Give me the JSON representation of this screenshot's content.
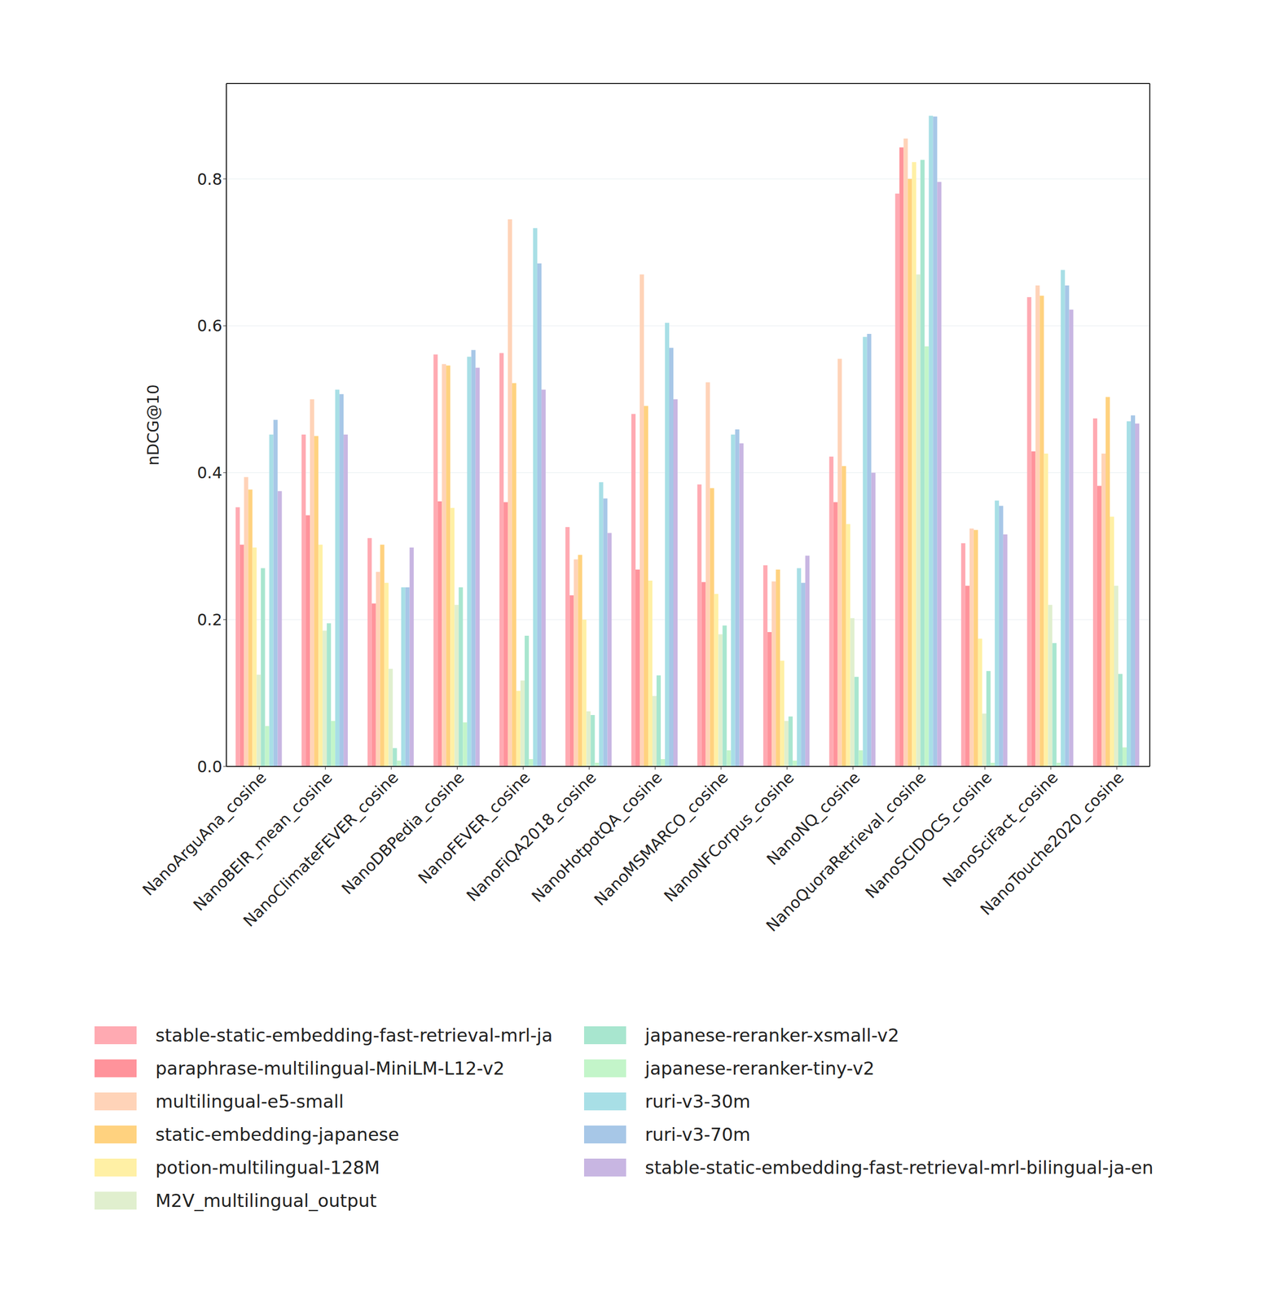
{
  "chart_data": {
    "type": "bar",
    "y_label": "nDCG@10",
    "categories": [
      "NanoArguAna_cosine",
      "NanoBEIR_mean_cosine",
      "NanoClimateFEVER_cosine",
      "NanoDBPedia_cosine",
      "NanoFEVER_cosine",
      "NanoFiQA2018_cosine",
      "NanoHotpotQA_cosine",
      "NanoMSMARCO_cosine",
      "NanoNFCorpus_cosine",
      "NanoNQ_cosine",
      "NanoQuoraRetrieval_cosine",
      "NanoSCIDOCS_cosine",
      "NanoSciFact_cosine",
      "NanoTouche2020_cosine"
    ],
    "series": [
      {
        "name": "stable-static-embedding-fast-retrieval-mrl-ja",
        "color": "#ffaab2",
        "values": [
          0.353,
          0.452,
          0.311,
          0.561,
          0.563,
          0.326,
          0.48,
          0.384,
          0.274,
          0.422,
          0.78,
          0.304,
          0.639,
          0.474
        ]
      },
      {
        "name": "paraphrase-multilingual-MiniLM-L12-v2",
        "color": "#ff939b",
        "values": [
          0.302,
          0.342,
          0.222,
          0.361,
          0.36,
          0.233,
          0.268,
          0.251,
          0.183,
          0.36,
          0.843,
          0.246,
          0.429,
          0.382
        ]
      },
      {
        "name": "multilingual-e5-small",
        "color": "#ffd3b8",
        "values": [
          0.394,
          0.5,
          0.265,
          0.548,
          0.745,
          0.282,
          0.67,
          0.523,
          0.252,
          0.555,
          0.855,
          0.324,
          0.655,
          0.426
        ]
      },
      {
        "name": "static-embedding-japanese",
        "color": "#ffd27f",
        "values": [
          0.377,
          0.45,
          0.302,
          0.546,
          0.522,
          0.288,
          0.491,
          0.379,
          0.268,
          0.409,
          0.8,
          0.322,
          0.641,
          0.503
        ]
      },
      {
        "name": "potion-multilingual-128M",
        "color": "#fff0a5",
        "values": [
          0.298,
          0.302,
          0.25,
          0.352,
          0.103,
          0.2,
          0.253,
          0.235,
          0.144,
          0.33,
          0.823,
          0.174,
          0.426,
          0.34
        ]
      },
      {
        "name": "M2V_multilingual_output",
        "color": "#e0efce",
        "values": [
          0.125,
          0.185,
          0.133,
          0.22,
          0.117,
          0.075,
          0.096,
          0.18,
          0.062,
          0.202,
          0.67,
          0.072,
          0.22,
          0.246
        ]
      },
      {
        "name": "japanese-reranker-xsmall-v2",
        "color": "#a8e6cf",
        "values": [
          0.27,
          0.195,
          0.025,
          0.244,
          0.178,
          0.07,
          0.124,
          0.192,
          0.068,
          0.122,
          0.826,
          0.13,
          0.168,
          0.126
        ]
      },
      {
        "name": "japanese-reranker-tiny-v2",
        "color": "#c3f5c9",
        "values": [
          0.055,
          0.062,
          0.008,
          0.06,
          0.01,
          0.005,
          0.01,
          0.022,
          0.008,
          0.022,
          0.572,
          0.005,
          0.005,
          0.026
        ]
      },
      {
        "name": "ruri-v3-30m",
        "color": "#a8dfe6",
        "values": [
          0.452,
          0.513,
          0.244,
          0.558,
          0.733,
          0.387,
          0.604,
          0.452,
          0.27,
          0.585,
          0.886,
          0.362,
          0.676,
          0.47
        ]
      },
      {
        "name": "ruri-v3-70m",
        "color": "#a7c7e7",
        "values": [
          0.472,
          0.507,
          0.244,
          0.567,
          0.685,
          0.365,
          0.57,
          0.459,
          0.25,
          0.589,
          0.885,
          0.355,
          0.655,
          0.478
        ]
      },
      {
        "name": "stable-static-embedding-fast-retrieval-mrl-bilingual-ja-en",
        "color": "#c8b6e2",
        "values": [
          0.375,
          0.452,
          0.298,
          0.543,
          0.513,
          0.318,
          0.5,
          0.44,
          0.287,
          0.4,
          0.796,
          0.316,
          0.622,
          0.467
        ]
      }
    ],
    "ylim": [
      0,
      0.93
    ],
    "yticks": [
      {
        "value": 0,
        "label": "0.0"
      },
      {
        "value": 0.2,
        "label": "0.2"
      },
      {
        "value": 0.4,
        "label": "0.4"
      },
      {
        "value": 0.6,
        "label": "0.6"
      },
      {
        "value": 0.8,
        "label": "0.8"
      }
    ],
    "grid": true,
    "legend": "bottom"
  }
}
